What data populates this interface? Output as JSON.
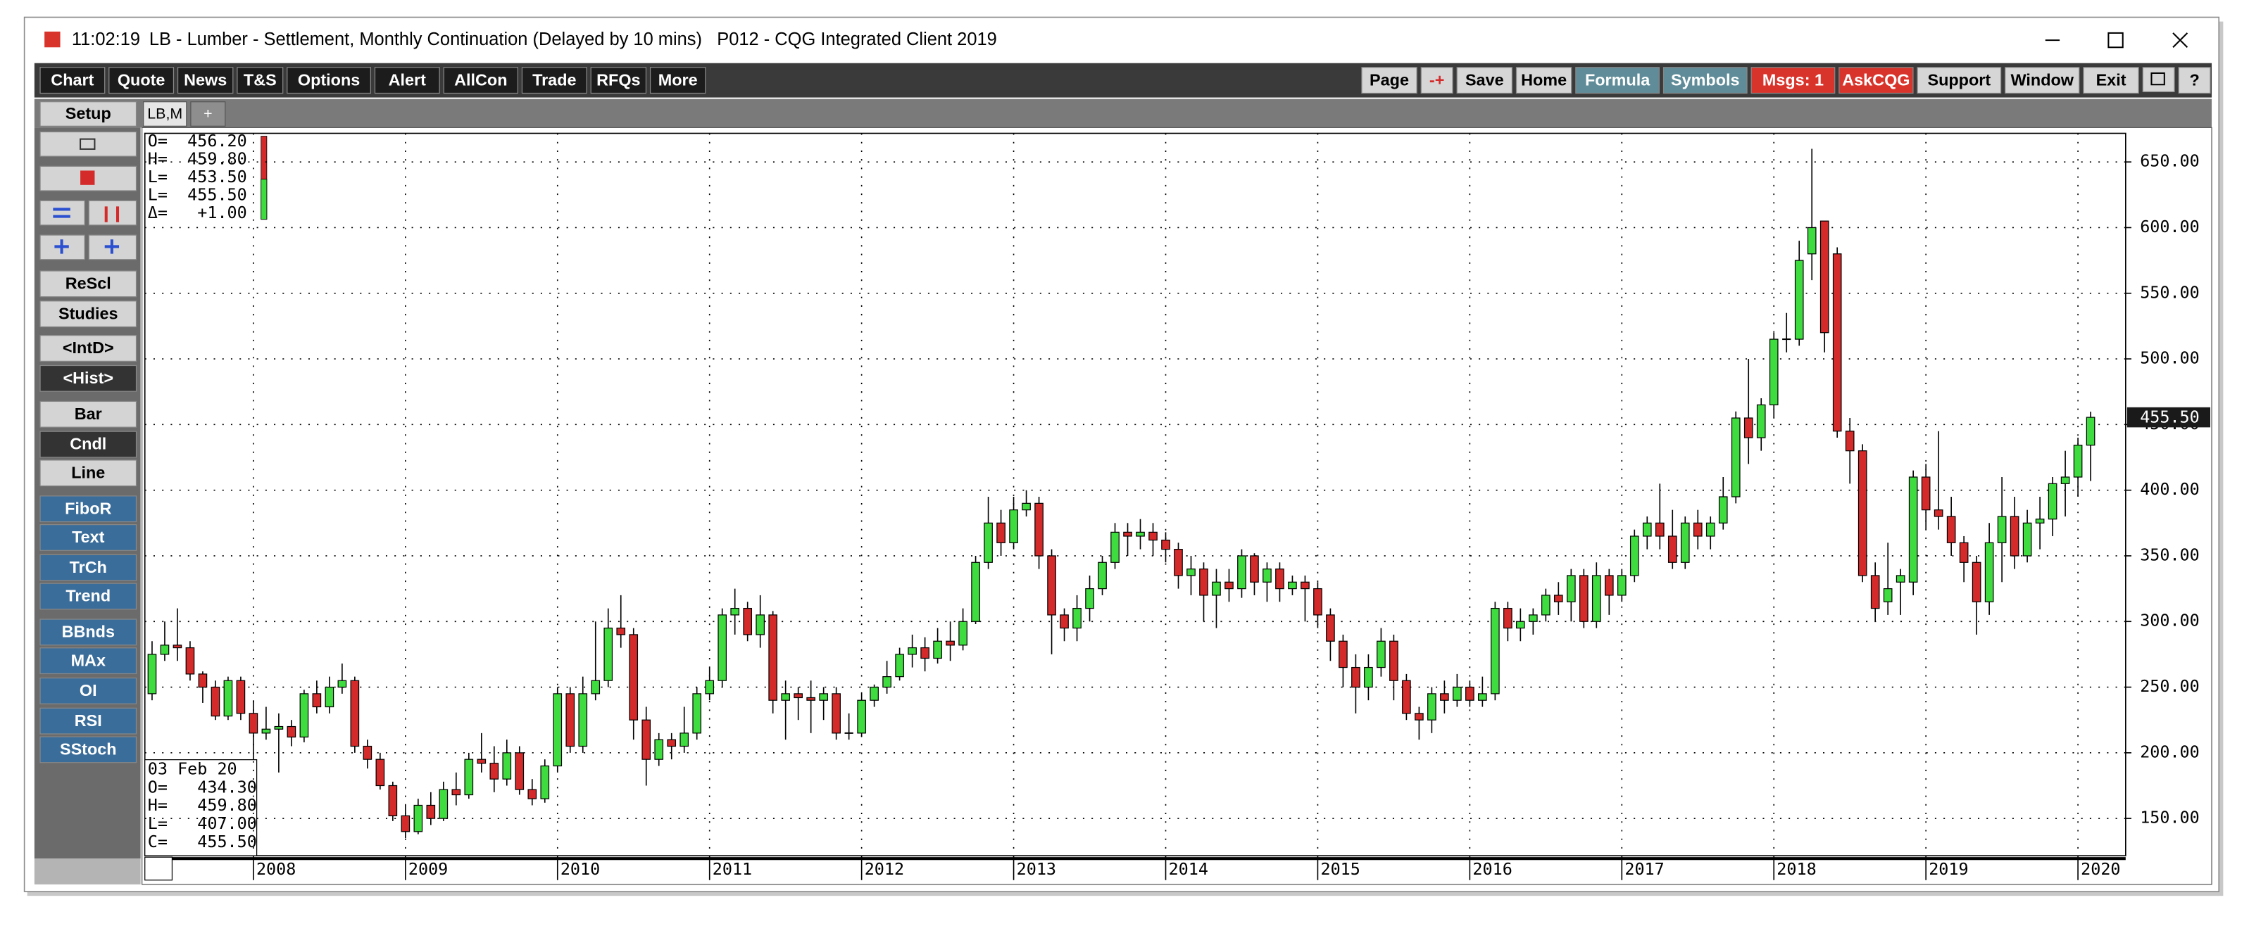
{
  "window": {
    "time": "11:02:19",
    "title": "LB - Lumber - Settlement, Monthly Continuation (Delayed by 10 mins)   P012 - CQG Integrated Client 2019"
  },
  "toolbar_left": [
    "Chart",
    "Quote",
    "News",
    "T&S",
    "Options",
    "Alert",
    "AllCon",
    "Trade",
    "RFQs",
    "More"
  ],
  "toolbar_right": [
    {
      "label": "Page",
      "color": "#d6d6d6",
      "text_color": "#000000"
    },
    {
      "label": "-+",
      "color": "#d6d6d6",
      "text_color": "#d42a2a"
    },
    {
      "label": "Save",
      "color": "#d6d6d6",
      "text_color": "#000000"
    },
    {
      "label": "Home",
      "color": "#d6d6d6",
      "text_color": "#000000"
    },
    {
      "label": "Formula",
      "color": "#5f8c98",
      "text_color": "#ffffff"
    },
    {
      "label": "Symbols",
      "color": "#5f8c98",
      "text_color": "#ffffff"
    },
    {
      "label": "Msgs: 1",
      "color": "#d9342b",
      "text_color": "#ffffff"
    },
    {
      "label": "AskCQG",
      "color": "#d9342b",
      "text_color": "#ffffff"
    },
    {
      "label": "Support",
      "color": "#d6d6d6",
      "text_color": "#000000"
    },
    {
      "label": "Window",
      "color": "#d6d6d6",
      "text_color": "#000000"
    },
    {
      "label": "Exit",
      "color": "#d6d6d6",
      "text_color": "#000000"
    },
    {
      "label": "?",
      "color": "#d6d6d6",
      "text_color": "#000000"
    }
  ],
  "setup": "Setup",
  "tabs": [
    "LB,M",
    "+"
  ],
  "sidebar": [
    {
      "label": "ReScl",
      "color": "#d4d4d4",
      "text_color": "#000000"
    },
    {
      "label": "Studies",
      "color": "#d4d4d4",
      "text_color": "#000000"
    },
    {
      "label": "<IntD>",
      "color": "#d4d4d4",
      "text_color": "#000000"
    },
    {
      "label": "<Hist>",
      "color": "#333333",
      "text_color": "#ffffff"
    },
    {
      "label": "Bar",
      "color": "#d4d4d4",
      "text_color": "#000000"
    },
    {
      "label": "Cndl",
      "color": "#333333",
      "text_color": "#ffffff"
    },
    {
      "label": "Line",
      "color": "#d4d4d4",
      "text_color": "#000000"
    },
    {
      "label": "FiboR",
      "color": "#3a6d9a",
      "text_color": "#ffffff"
    },
    {
      "label": "Text",
      "color": "#3a6d9a",
      "text_color": "#ffffff"
    },
    {
      "label": "TrCh",
      "color": "#3a6d9a",
      "text_color": "#ffffff"
    },
    {
      "label": "Trend",
      "color": "#3a6d9a",
      "text_color": "#ffffff"
    },
    {
      "label": "BBnds",
      "color": "#3a6d9a",
      "text_color": "#ffffff"
    },
    {
      "label": "MAx",
      "color": "#3a6d9a",
      "text_color": "#ffffff"
    },
    {
      "label": "OI",
      "color": "#3a6d9a",
      "text_color": "#ffffff"
    },
    {
      "label": "RSI",
      "color": "#3a6d9a",
      "text_color": "#ffffff"
    },
    {
      "label": "SStoch",
      "color": "#3a6d9a",
      "text_color": "#ffffff"
    }
  ],
  "quote_box": [
    "O=  456.20",
    "H=  459.80",
    "L=  453.50",
    "L=  455.50",
    "Δ=   +1.00"
  ],
  "cursor_box": [
    "03 Feb 20",
    "O=   434.30",
    "H=   459.80",
    "L=   407.00",
    "C=   455.50"
  ],
  "chart_data": {
    "type": "candlestick",
    "categories": [
      null,
      null,
      null,
      null,
      null,
      null,
      null,
      null,
      "2008",
      null,
      null,
      null,
      null,
      null,
      null,
      null,
      null,
      null,
      null,
      null,
      "2009",
      null,
      null,
      null,
      null,
      null,
      null,
      null,
      null,
      null,
      null,
      null,
      "2010",
      null,
      null,
      null,
      null,
      null,
      null,
      null,
      null,
      null,
      null,
      null,
      "2011",
      null,
      null,
      null,
      null,
      null,
      null,
      null,
      null,
      null,
      null,
      null,
      "2012",
      null,
      null,
      null,
      null,
      null,
      null,
      null,
      null,
      null,
      null,
      null,
      "2013",
      null,
      null,
      null,
      null,
      null,
      null,
      null,
      null,
      null,
      null,
      null,
      "2014",
      null,
      null,
      null,
      null,
      null,
      null,
      null,
      null,
      null,
      null,
      null,
      "2015",
      null,
      null,
      null,
      null,
      null,
      null,
      null,
      null,
      null,
      null,
      null,
      "2016",
      null,
      null,
      null,
      null,
      null,
      null,
      null,
      null,
      null,
      null,
      null,
      "2017",
      null,
      null,
      null,
      null,
      null,
      null,
      null,
      null,
      null,
      null,
      null,
      "2018",
      null,
      null,
      null,
      null,
      null,
      null,
      null,
      null,
      null,
      null,
      null,
      "2019",
      null,
      null,
      null,
      null,
      null,
      null,
      null,
      null,
      null,
      null,
      null,
      "2020",
      null
    ],
    "open": [
      245,
      275,
      282,
      280,
      260,
      250,
      228,
      255,
      230,
      215,
      218,
      220,
      212,
      245,
      235,
      250,
      255,
      205,
      195,
      175,
      152,
      140,
      160,
      150,
      172,
      168,
      195,
      192,
      180,
      200,
      172,
      165,
      190,
      245,
      205,
      245,
      255,
      295,
      290,
      225,
      195,
      210,
      205,
      215,
      245,
      255,
      305,
      310,
      290,
      305,
      240,
      245,
      242,
      240,
      245,
      215,
      215,
      240,
      250,
      258,
      275,
      280,
      272,
      285,
      282,
      300,
      345,
      375,
      360,
      385,
      390,
      350,
      305,
      295,
      310,
      325,
      345,
      368,
      365,
      368,
      362,
      355,
      335,
      340,
      320,
      330,
      325,
      350,
      330,
      340,
      325,
      330,
      325,
      305,
      285,
      265,
      250,
      265,
      285,
      255,
      230,
      225,
      245,
      240,
      250,
      240,
      245,
      310,
      295,
      300,
      305,
      320,
      315,
      335,
      300,
      335,
      320,
      335,
      365,
      375,
      365,
      345,
      375,
      365,
      375,
      395,
      455,
      440,
      465,
      515,
      515,
      580,
      605,
      580,
      445,
      430,
      335,
      315,
      330,
      330,
      410,
      385,
      380,
      360,
      345,
      315,
      360,
      380,
      350,
      375,
      378,
      405,
      410,
      434.3
    ],
    "high": [
      285,
      300,
      310,
      285,
      262,
      255,
      258,
      258,
      240,
      235,
      230,
      225,
      248,
      255,
      258,
      268,
      258,
      210,
      200,
      178,
      160,
      165,
      170,
      178,
      185,
      200,
      215,
      205,
      210,
      205,
      180,
      195,
      250,
      250,
      258,
      300,
      310,
      320,
      295,
      235,
      215,
      215,
      235,
      250,
      265,
      310,
      325,
      315,
      320,
      308,
      255,
      250,
      255,
      250,
      250,
      230,
      245,
      252,
      270,
      280,
      290,
      288,
      295,
      300,
      310,
      350,
      395,
      385,
      395,
      400,
      395,
      355,
      310,
      320,
      335,
      350,
      375,
      375,
      378,
      375,
      368,
      360,
      350,
      345,
      340,
      340,
      355,
      352,
      345,
      345,
      335,
      335,
      330,
      310,
      290,
      275,
      275,
      295,
      290,
      260,
      235,
      250,
      255,
      260,
      255,
      258,
      315,
      315,
      310,
      310,
      325,
      330,
      340,
      340,
      345,
      340,
      340,
      370,
      380,
      405,
      385,
      380,
      385,
      380,
      410,
      460,
      500,
      470,
      520,
      535,
      590,
      660,
      605,
      585,
      455,
      435,
      345,
      360,
      340,
      415,
      420,
      445,
      395,
      365,
      350,
      375,
      410,
      395,
      385,
      395,
      410,
      430,
      440,
      459.8
    ],
    "low": [
      240,
      270,
      270,
      255,
      238,
      225,
      225,
      225,
      195,
      210,
      185,
      205,
      208,
      230,
      230,
      245,
      200,
      188,
      172,
      148,
      135,
      138,
      145,
      148,
      160,
      165,
      185,
      170,
      175,
      168,
      160,
      162,
      185,
      200,
      200,
      240,
      250,
      280,
      210,
      175,
      190,
      195,
      200,
      210,
      240,
      250,
      290,
      285,
      280,
      230,
      210,
      225,
      215,
      225,
      210,
      210,
      212,
      235,
      245,
      255,
      265,
      262,
      268,
      270,
      278,
      298,
      340,
      350,
      355,
      380,
      340,
      275,
      285,
      285,
      300,
      320,
      340,
      350,
      355,
      350,
      345,
      325,
      320,
      300,
      295,
      315,
      318,
      320,
      315,
      315,
      320,
      300,
      295,
      270,
      250,
      230,
      240,
      258,
      240,
      225,
      210,
      215,
      230,
      235,
      235,
      235,
      240,
      285,
      285,
      290,
      300,
      305,
      300,
      295,
      295,
      305,
      315,
      330,
      355,
      355,
      340,
      340,
      355,
      355,
      370,
      390,
      420,
      430,
      455,
      505,
      510,
      560,
      505,
      440,
      405,
      330,
      300,
      305,
      305,
      320,
      370,
      370,
      350,
      330,
      290,
      305,
      330,
      340,
      345,
      355,
      365,
      380,
      395,
      407
    ],
    "close": [
      275,
      282,
      280,
      260,
      250,
      228,
      255,
      230,
      215,
      218,
      220,
      212,
      245,
      235,
      250,
      255,
      205,
      195,
      175,
      152,
      140,
      160,
      150,
      172,
      168,
      195,
      192,
      180,
      200,
      172,
      165,
      190,
      245,
      205,
      245,
      255,
      295,
      290,
      225,
      195,
      210,
      205,
      215,
      245,
      255,
      305,
      310,
      290,
      305,
      240,
      245,
      242,
      240,
      245,
      215,
      215,
      240,
      250,
      258,
      275,
      280,
      272,
      285,
      282,
      300,
      345,
      375,
      360,
      385,
      390,
      350,
      305,
      295,
      310,
      325,
      345,
      368,
      365,
      368,
      362,
      355,
      335,
      340,
      320,
      330,
      325,
      350,
      330,
      340,
      325,
      330,
      325,
      305,
      285,
      265,
      250,
      265,
      285,
      255,
      230,
      225,
      245,
      240,
      250,
      240,
      245,
      310,
      295,
      300,
      305,
      320,
      315,
      335,
      300,
      335,
      320,
      335,
      365,
      375,
      365,
      345,
      375,
      365,
      375,
      395,
      455,
      440,
      465,
      515,
      515,
      575,
      600,
      520,
      445,
      430,
      335,
      310,
      325,
      335,
      410,
      385,
      380,
      360,
      345,
      315,
      360,
      380,
      350,
      375,
      378,
      405,
      410,
      434.3,
      455.5
    ],
    "last_label": "455.50",
    "up_color": "#3fdc3f",
    "down_color": "#d42a2a",
    "ylim": [
      121.6,
      671.8
    ],
    "yticks": [
      {
        "value": 150,
        "label": "150.00"
      },
      {
        "value": 200,
        "label": "200.00"
      },
      {
        "value": 250,
        "label": "250.00"
      },
      {
        "value": 300,
        "label": "300.00"
      },
      {
        "value": 350,
        "label": "350.00"
      },
      {
        "value": 400,
        "label": "400.00"
      },
      {
        "value": 450,
        "label": "450.00"
      },
      {
        "value": 500,
        "label": "500.00"
      },
      {
        "value": 550,
        "label": "550.00"
      },
      {
        "value": 600,
        "label": "600.00"
      },
      {
        "value": 650,
        "label": "650.00"
      }
    ],
    "grid": true
  }
}
